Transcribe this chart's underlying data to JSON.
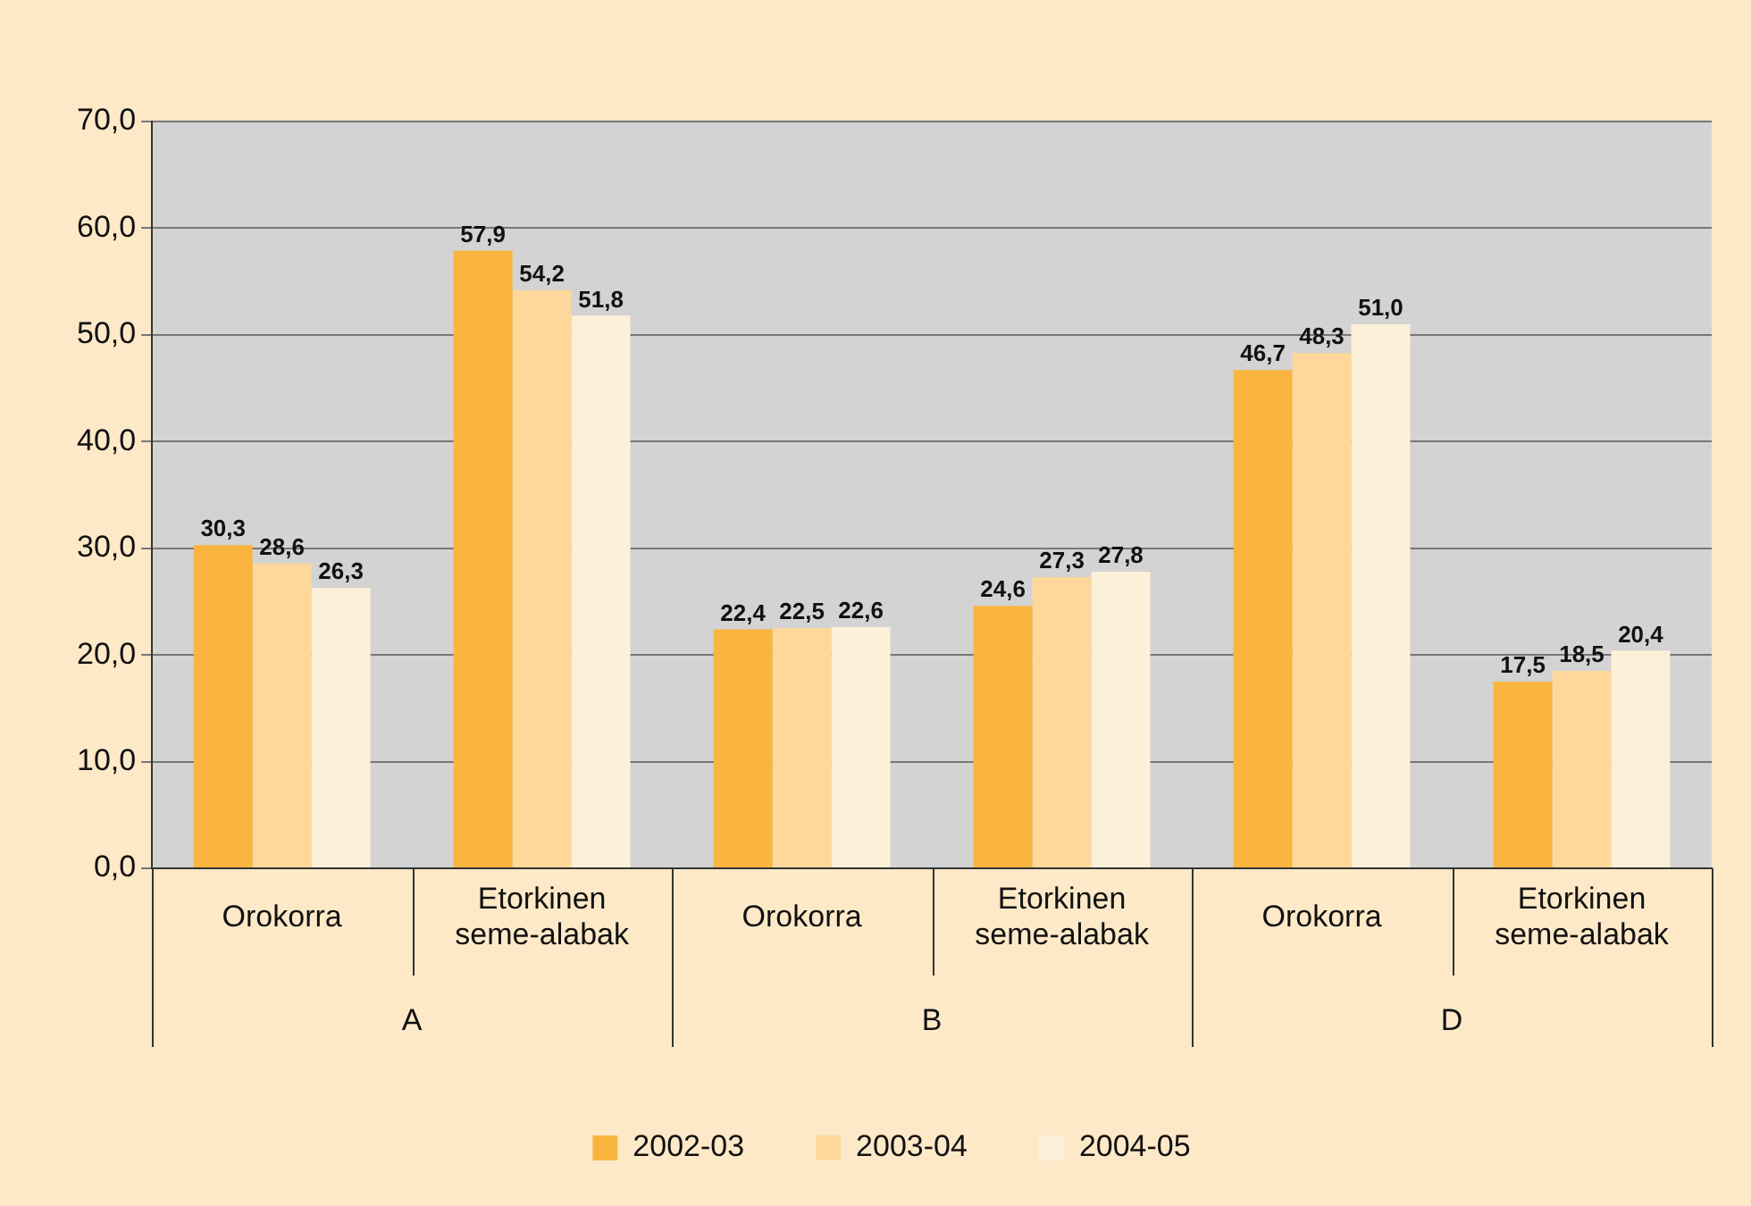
{
  "chart_data": {
    "type": "bar",
    "categories": [
      "Orokorra",
      "Etorkinen seme-alabak",
      "Orokorra",
      "Etorkinen seme-alabak",
      "Orokorra",
      "Etorkinen seme-alabak"
    ],
    "annotations": [
      "A",
      "B",
      "D"
    ],
    "series": [
      {
        "name": "2002-03",
        "color": "#f9b53f",
        "values": [
          30.3,
          57.9,
          22.4,
          24.6,
          46.7,
          17.5
        ],
        "value_labels": [
          "30,3",
          "57,9",
          "22,4",
          "24,6",
          "46,7",
          "17,5"
        ]
      },
      {
        "name": "2003-04",
        "color": "#fdd89a",
        "values": [
          28.6,
          54.2,
          22.5,
          27.3,
          48.3,
          18.5
        ],
        "value_labels": [
          "28,6",
          "54,2",
          "22,5",
          "27,3",
          "48,3",
          "18,5"
        ]
      },
      {
        "name": "2004-05",
        "color": "#fdf0d8",
        "values": [
          26.3,
          51.8,
          22.6,
          27.8,
          51.0,
          20.4
        ],
        "value_labels": [
          "26,3",
          "51,8",
          "22,6",
          "27,8",
          "51,0",
          "20,4"
        ]
      }
    ],
    "ylim": [
      0,
      70
    ],
    "yticks": [
      {
        "value": 0,
        "label": "0,0"
      },
      {
        "value": 10,
        "label": "10,0"
      },
      {
        "value": 20,
        "label": "20,0"
      },
      {
        "value": 30,
        "label": "30,0"
      },
      {
        "value": 40,
        "label": "40,0"
      },
      {
        "value": 50,
        "label": "50,0"
      },
      {
        "value": 60,
        "label": "60,0"
      },
      {
        "value": 70,
        "label": "70,0"
      }
    ],
    "grid": "y",
    "legend": "bottom"
  }
}
